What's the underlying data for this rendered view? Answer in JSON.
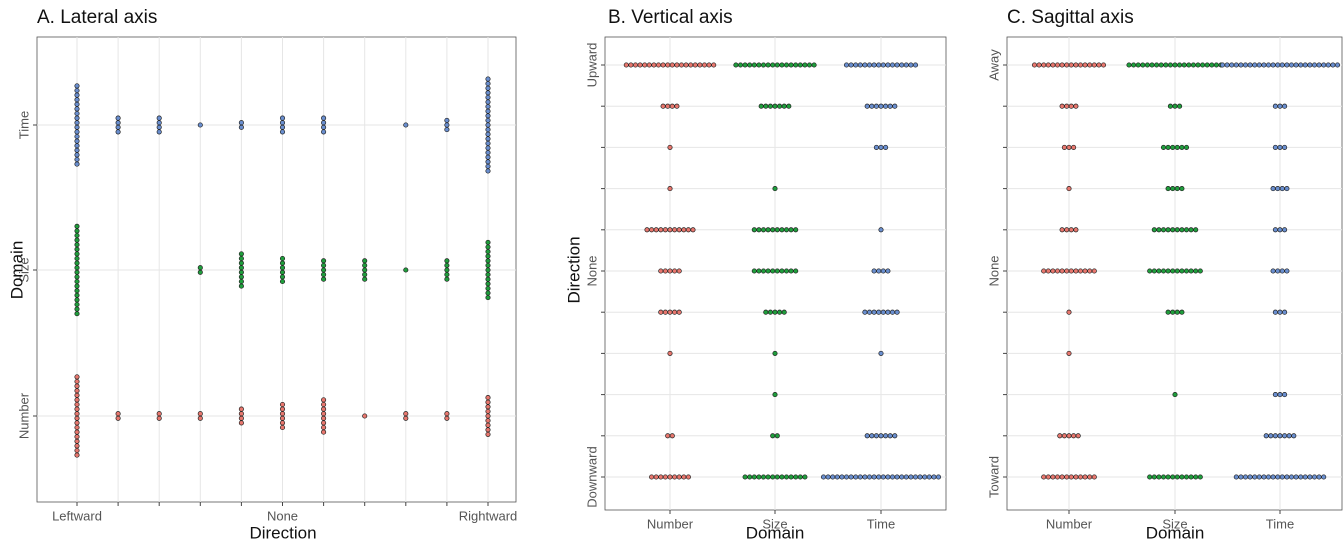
{
  "chart_data": [
    {
      "type": "dotplot",
      "title": "A. Lateral axis",
      "x_label": "Direction",
      "y_label": "Domain",
      "levels_axis": "x",
      "levels": [
        "Leftward",
        null,
        null,
        null,
        null,
        "None",
        null,
        null,
        null,
        null,
        "Rightward"
      ],
      "series": [
        {
          "name": "Number",
          "color": "#e8776e",
          "values": [
            18,
            2,
            2,
            2,
            4,
            6,
            8,
            1,
            2,
            2,
            9
          ]
        },
        {
          "name": "Size",
          "color": "#1f9e3c",
          "values": [
            20,
            0,
            0,
            2,
            8,
            6,
            5,
            5,
            1,
            5,
            13
          ]
        },
        {
          "name": "Time",
          "color": "#6a8fd0",
          "values": [
            18,
            4,
            4,
            1,
            2,
            4,
            4,
            0,
            1,
            3,
            21
          ]
        }
      ],
      "grid": true
    },
    {
      "type": "dotplot",
      "title": "B. Vertical axis",
      "x_label": "Domain",
      "y_label": "Direction",
      "levels_axis": "y",
      "levels": [
        "Downward",
        null,
        null,
        null,
        null,
        "None",
        null,
        null,
        null,
        null,
        "Upward"
      ],
      "series": [
        {
          "name": "Number",
          "color": "#e8776e",
          "values": [
            9,
            2,
            0,
            1,
            5,
            5,
            11,
            1,
            1,
            4,
            20
          ]
        },
        {
          "name": "Size",
          "color": "#1f9e3c",
          "values": [
            14,
            2,
            1,
            1,
            5,
            10,
            10,
            1,
            0,
            7,
            18
          ]
        },
        {
          "name": "Time",
          "color": "#6a8fd0",
          "values": [
            26,
            7,
            0,
            1,
            8,
            4,
            1,
            0,
            3,
            7,
            16
          ]
        }
      ],
      "grid": true
    },
    {
      "type": "dotplot",
      "title": "C. Sagittal axis",
      "x_label": "Domain",
      "levels_axis": "y",
      "levels": [
        "Toward",
        null,
        null,
        null,
        null,
        "None",
        null,
        null,
        null,
        null,
        "Away"
      ],
      "series": [
        {
          "name": "Number",
          "color": "#e8776e",
          "values": [
            12,
            5,
            0,
            1,
            1,
            12,
            4,
            1,
            3,
            4,
            16
          ]
        },
        {
          "name": "Size",
          "color": "#1f9e3c",
          "values": [
            12,
            0,
            1,
            0,
            4,
            12,
            10,
            4,
            6,
            3,
            21
          ]
        },
        {
          "name": "Time",
          "color": "#6a8fd0",
          "values": [
            20,
            7,
            3,
            0,
            3,
            4,
            3,
            4,
            3,
            3,
            26
          ]
        }
      ],
      "grid": true
    }
  ]
}
